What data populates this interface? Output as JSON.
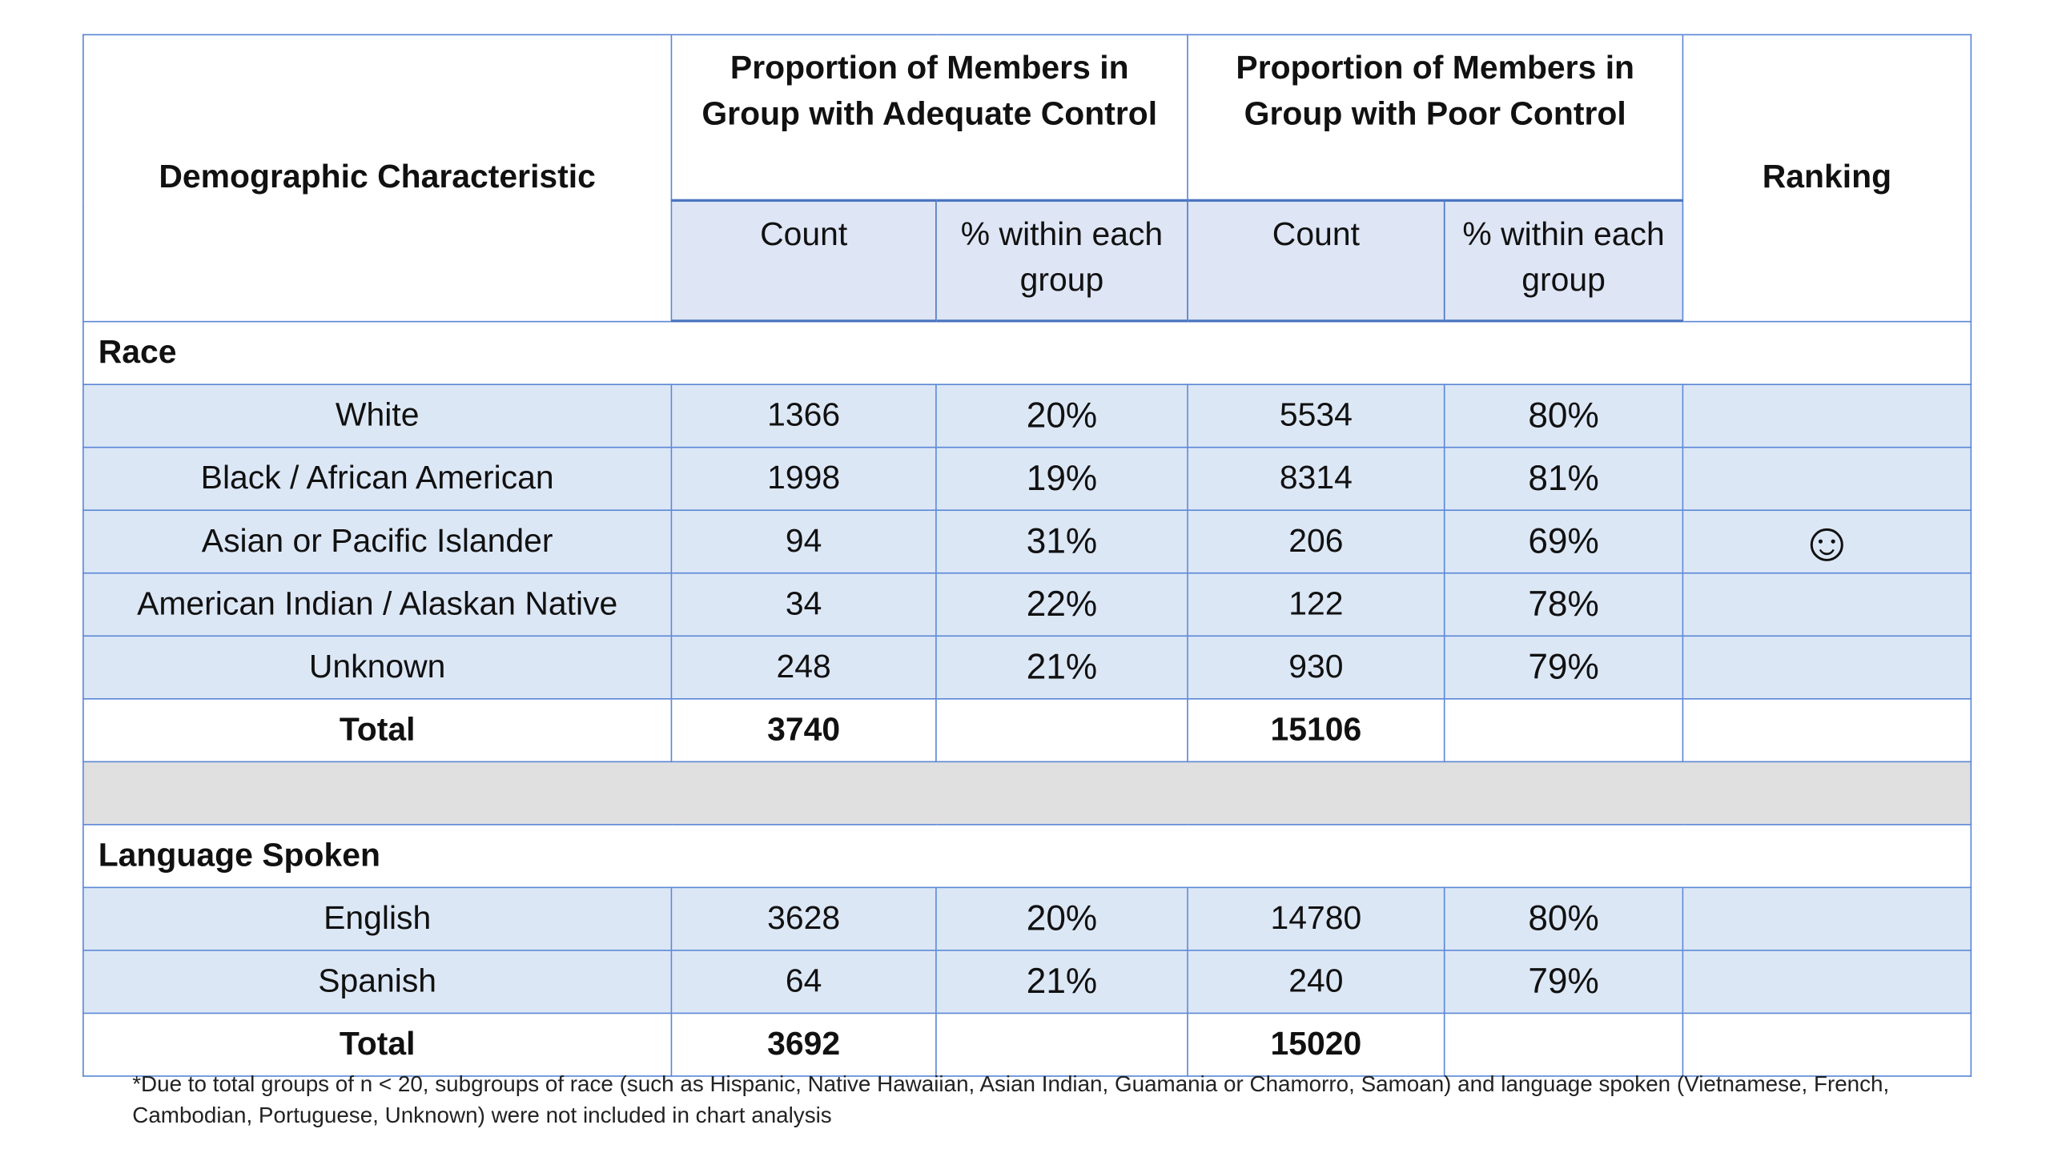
{
  "table": {
    "header": {
      "characteristic": "Demographic Characteristic",
      "adequate": "Proportion of Members in Group with Adequate Control",
      "poor": "Proportion of Members in Group with Poor Control",
      "ranking": "Ranking",
      "sub": [
        "Count",
        "% within each group",
        "Count",
        "% within each group"
      ]
    },
    "sections": [
      {
        "title": "Race",
        "rows": [
          [
            "White",
            1366,
            "20%",
            5534,
            "80%",
            ""
          ],
          [
            "Black / African American",
            1998,
            "19%",
            8314,
            "81%",
            ""
          ],
          [
            "Asian or Pacific Islander",
            94,
            "31%",
            206,
            "69%",
            "☺"
          ],
          [
            "American Indian / Alaskan Native",
            34,
            "22%",
            122,
            "78%",
            ""
          ],
          [
            "Unknown",
            248,
            "21%",
            930,
            "79%",
            ""
          ]
        ],
        "total": {
          "label": "Total",
          "adequate": 3740,
          "poor": 15106
        }
      },
      {
        "title": "Language Spoken",
        "rows": [
          [
            "English",
            3628,
            "20%",
            14780,
            "80%",
            ""
          ],
          [
            "Spanish",
            64,
            "21%",
            240,
            "79%",
            ""
          ]
        ],
        "total": {
          "label": "Total",
          "adequate": 3692,
          "poor": 15020
        }
      }
    ]
  },
  "footnote": "*Due to total groups of n < 20, subgroups of race (such as Hispanic, Native Hawaiian, Asian Indian, Guamania or Chamorro, Samoan) and language spoken (Vietnamese, French, Cambodian, Portuguese, Unknown) were not included in chart analysis"
}
